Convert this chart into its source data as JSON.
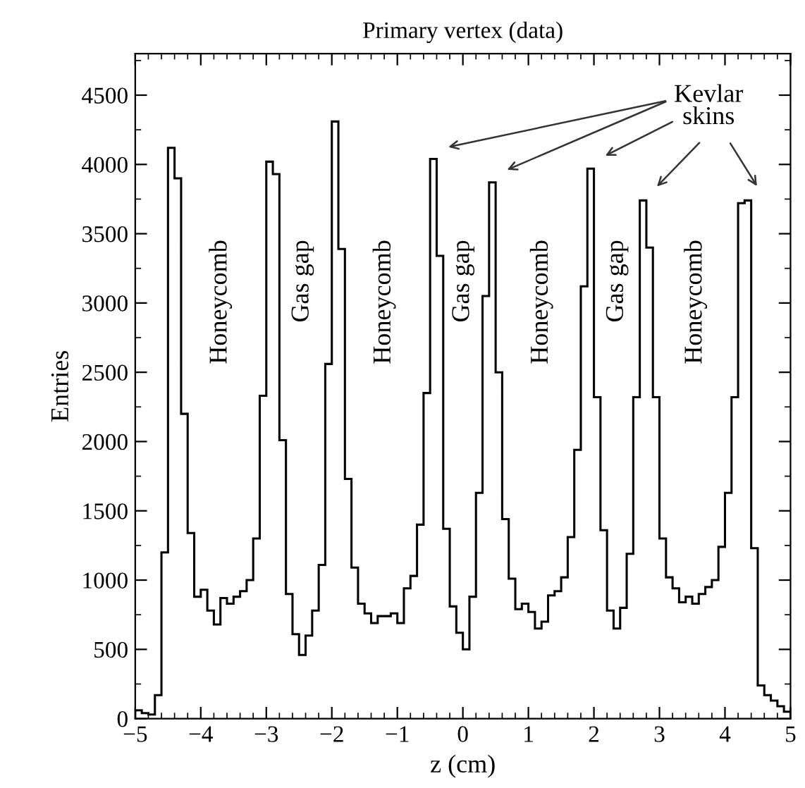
{
  "chart_data": {
    "type": "histogram",
    "title": "Primary vertex (data)",
    "xlabel": "z (cm)",
    "ylabel": "Entries",
    "bins": [
      -5.0,
      -4.9,
      -4.8,
      -4.7,
      -4.6,
      -4.5,
      -4.4,
      -4.3,
      -4.2,
      -4.1,
      -4.0,
      -3.9,
      -3.8,
      -3.7,
      -3.6,
      -3.5,
      -3.4,
      -3.3,
      -3.2,
      -3.1,
      -3.0,
      -2.9,
      -2.8,
      -2.7,
      -2.6,
      -2.5,
      -2.4,
      -2.3,
      -2.2,
      -2.1,
      -2.0,
      -1.9,
      -1.8,
      -1.7,
      -1.6,
      -1.5,
      -1.4,
      -1.3,
      -1.2,
      -1.1,
      -1.0,
      -0.9,
      -0.8,
      -0.7,
      -0.6,
      -0.5,
      -0.4,
      -0.3,
      -0.2,
      -0.1,
      0.0,
      0.1,
      0.2,
      0.3,
      0.4,
      0.5,
      0.6,
      0.7,
      0.8,
      0.9,
      1.0,
      1.1,
      1.2,
      1.3,
      1.4,
      1.5,
      1.6,
      1.7,
      1.8,
      1.9,
      2.0,
      2.1,
      2.2,
      2.3,
      2.4,
      2.5,
      2.6,
      2.7,
      2.8,
      2.9,
      3.0,
      3.1,
      3.2,
      3.3,
      3.4,
      3.5,
      3.6,
      3.7,
      3.8,
      3.9,
      4.0,
      4.1,
      4.2,
      4.3,
      4.4,
      4.5,
      4.6,
      4.7,
      4.8,
      4.9,
      5.0
    ],
    "values": [
      60,
      40,
      30,
      170,
      1200,
      4120,
      3900,
      2200,
      1340,
      880,
      930,
      780,
      680,
      870,
      830,
      880,
      920,
      1000,
      1300,
      2330,
      4020,
      3930,
      2010,
      900,
      610,
      460,
      600,
      780,
      1110,
      2560,
      4310,
      3390,
      1730,
      1090,
      830,
      760,
      690,
      740,
      740,
      760,
      690,
      940,
      1030,
      1400,
      2350,
      4040,
      3340,
      1370,
      810,
      620,
      500,
      880,
      1630,
      3050,
      3870,
      2500,
      1440,
      1010,
      790,
      830,
      770,
      650,
      700,
      890,
      920,
      1020,
      1310,
      1940,
      3120,
      3970,
      2320,
      1360,
      780,
      650,
      800,
      1190,
      2320,
      3740,
      3400,
      2320,
      1300,
      1020,
      940,
      840,
      880,
      830,
      900,
      950,
      1000,
      1240,
      1630,
      2320,
      3720,
      3740,
      1230,
      240,
      170,
      130,
      90,
      50
    ],
    "color": "#000000",
    "xlim": [
      -5,
      5
    ],
    "ylim": [
      0,
      4800
    ],
    "xticks": [
      {
        "value": -5,
        "label": "−5"
      },
      {
        "value": -4,
        "label": "−4"
      },
      {
        "value": -3,
        "label": "−3"
      },
      {
        "value": -2,
        "label": "−2"
      },
      {
        "value": -1,
        "label": "−1"
      },
      0,
      1,
      2,
      3,
      4,
      5
    ],
    "yticks": [
      0,
      500,
      1000,
      1500,
      2000,
      2500,
      3000,
      3500,
      4000,
      4500
    ],
    "grid": false,
    "legend": false,
    "annotations": [
      "Honeycomb",
      "Gas gap",
      "Honeycomb",
      "Gas gap",
      "Honeycomb",
      "Gas gap",
      "Honeycomb",
      "Kevlar\nskins"
    ]
  }
}
